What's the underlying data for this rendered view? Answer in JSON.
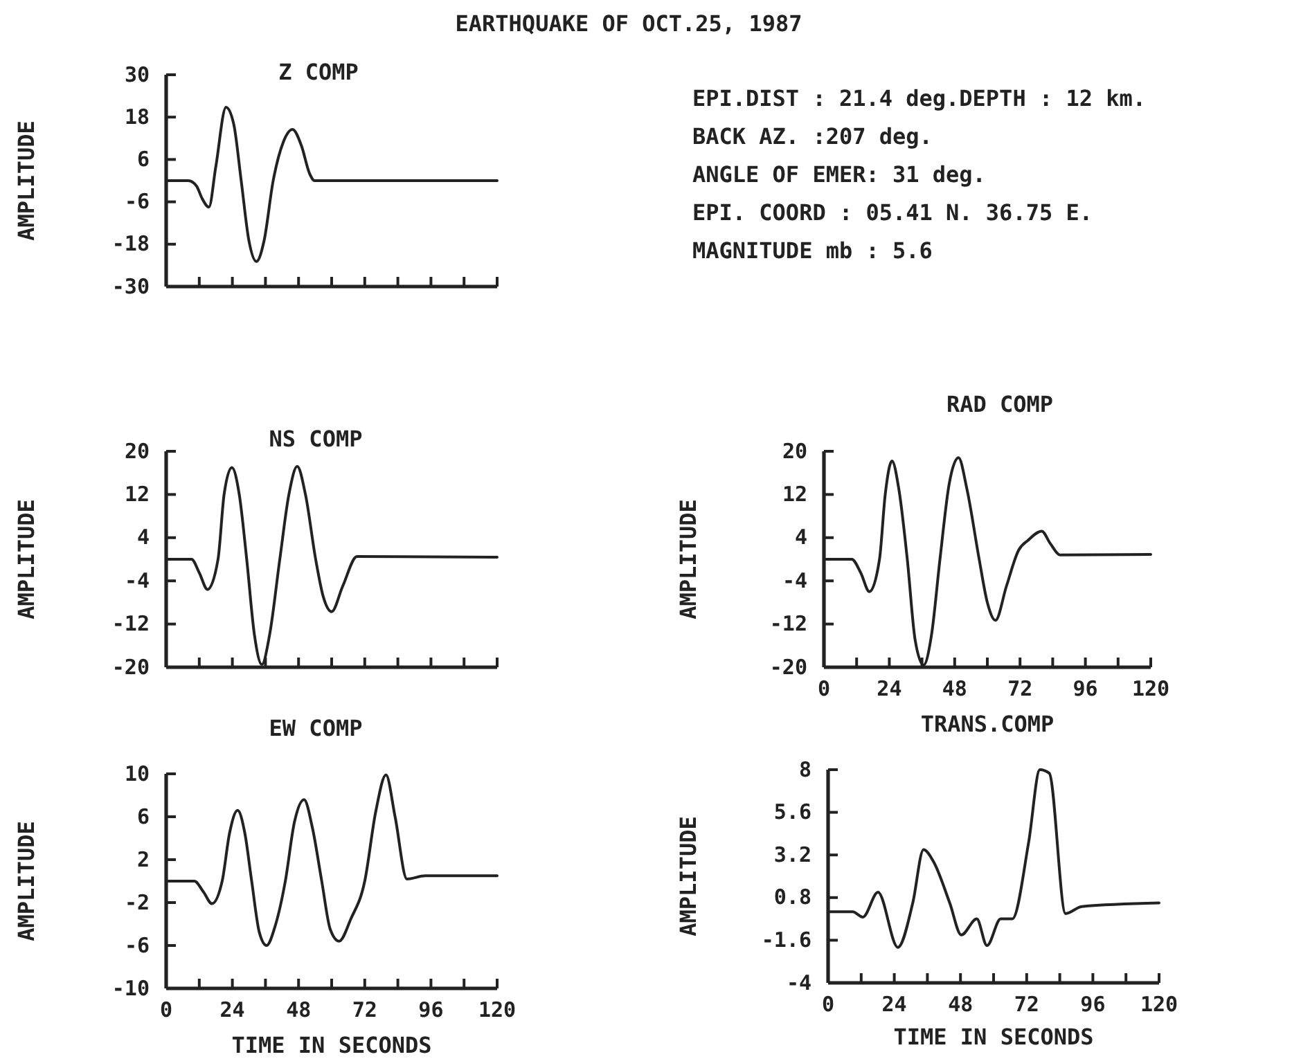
{
  "chart_data": [
    {
      "type": "line",
      "title": "Z COMP",
      "ylabel": "AMPLITUDE",
      "xlim": [
        0,
        120
      ],
      "ylim": [
        -30,
        30
      ],
      "yticks": [
        -30,
        -18,
        -6,
        6,
        18,
        30
      ],
      "tick_labels": "y",
      "line_style": "solid",
      "xticks": [
        {
          "value": 0,
          "label": null
        },
        {
          "value": 12,
          "label": null
        },
        {
          "value": 24,
          "label": null
        },
        {
          "value": 36,
          "label": null
        },
        {
          "value": 48,
          "label": null
        },
        {
          "value": 60,
          "label": null
        },
        {
          "value": 72,
          "label": null
        },
        {
          "value": 84,
          "label": null
        },
        {
          "value": 96,
          "label": null
        },
        {
          "value": 108,
          "label": null
        },
        {
          "value": 120,
          "label": null
        }
      ],
      "x": [
        0,
        8,
        11,
        13,
        15.5,
        18,
        21.7,
        24.5,
        27.2,
        30,
        32.7,
        35.5,
        38.8,
        42.5,
        45.8,
        49,
        52,
        53.8,
        60,
        120
      ],
      "series": [
        {
          "color": "#222222",
          "values": [
            0,
            0,
            -1.5,
            -5,
            -7.5,
            4,
            20.8,
            16,
            0,
            -17,
            -22.9,
            -17,
            0,
            11,
            14.5,
            10,
            2,
            0,
            0,
            0
          ]
        }
      ]
    },
    {
      "type": "other",
      "title": "EARTHQUAKE OF OCT.25, 1987",
      "annotations": [
        "EPI.DIST : 21.4 deg.DEPTH : 12 km.",
        "BACK AZ. :207 deg.",
        "ANGLE OF EMER: 31 deg.",
        "EPI. COORD : 05.41 N. 36.75 E.",
        "MAGNITUDE mb : 5.6"
      ]
    },
    {
      "type": "line",
      "title": "NS COMP",
      "ylabel": "AMPLITUDE",
      "xlim": [
        0,
        120
      ],
      "ylim": [
        -20,
        20
      ],
      "yticks": [
        -20,
        -12,
        -4,
        4,
        12,
        20
      ],
      "tick_labels": "y",
      "line_style": "solid",
      "xticks": [
        {
          "value": 0,
          "label": null
        },
        {
          "value": 12,
          "label": null
        },
        {
          "value": 24,
          "label": null
        },
        {
          "value": 36,
          "label": null
        },
        {
          "value": 48,
          "label": null
        },
        {
          "value": 60,
          "label": null
        },
        {
          "value": 72,
          "label": null
        },
        {
          "value": 84,
          "label": null
        },
        {
          "value": 96,
          "label": null
        },
        {
          "value": 108,
          "label": null
        },
        {
          "value": 120,
          "label": null
        }
      ],
      "x": [
        0,
        9.2,
        12,
        15,
        18.8,
        21,
        23.8,
        26.5,
        29.2,
        32,
        34.7,
        37.5,
        41.2,
        44.5,
        47.5,
        50.5,
        54.2,
        57,
        60,
        64,
        69.2,
        120
      ],
      "series": [
        {
          "color": "#222222",
          "values": [
            0,
            0,
            -2.5,
            -5.6,
            0,
            12,
            17,
            12,
            0,
            -14,
            -19.5,
            -14,
            0,
            12,
            17.2,
            12,
            0,
            -7,
            -9.7,
            -5,
            0.5,
            0.4
          ]
        }
      ]
    },
    {
      "type": "line",
      "title": "RAD COMP",
      "ylabel": "AMPLITUDE",
      "xlim": [
        0,
        120
      ],
      "ylim": [
        -20,
        20
      ],
      "yticks": [
        -20,
        -12,
        -4,
        4,
        12,
        20
      ],
      "line_style": "solid",
      "xticks": [
        0,
        {
          "value": 12,
          "label": null
        },
        24,
        {
          "value": 36,
          "label": null
        },
        48,
        {
          "value": 60,
          "label": null
        },
        72,
        {
          "value": 84,
          "label": null
        },
        96,
        {
          "value": 108,
          "label": null
        },
        120
      ],
      "x": [
        0,
        10.2,
        13.5,
        16.7,
        20.4,
        22.5,
        25,
        27.5,
        30.6,
        33.5,
        36.6,
        39.5,
        42.6,
        46,
        49.4,
        52.5,
        57,
        60,
        63,
        67,
        71.5,
        74.9,
        80,
        83,
        86.8,
        120
      ],
      "series": [
        {
          "color": "#222222",
          "values": [
            0,
            0,
            -2.5,
            -6,
            0,
            12,
            18.2,
            13,
            0,
            -15,
            -19.6,
            -14,
            0,
            14,
            18.8,
            13,
            0,
            -8,
            -11.3,
            -5,
            1.7,
            3.5,
            5.2,
            3,
            0.8,
            0.9
          ]
        }
      ]
    },
    {
      "type": "line",
      "title": "EW COMP",
      "ylabel": "AMPLITUDE",
      "xlabel": "TIME IN SECONDS",
      "xlim": [
        0,
        120
      ],
      "ylim": [
        -10,
        10
      ],
      "yticks": [
        -10,
        -6,
        -2,
        2,
        6,
        10
      ],
      "line_style": "solid",
      "xticks": [
        0,
        {
          "value": 12,
          "label": null
        },
        24,
        {
          "value": 36,
          "label": null
        },
        48,
        {
          "value": 60,
          "label": null
        },
        72,
        {
          "value": 84,
          "label": null
        },
        96,
        {
          "value": 108,
          "label": null
        },
        120
      ],
      "x": [
        0,
        10.2,
        13.5,
        16.6,
        20.3,
        23,
        25.9,
        28.5,
        31,
        33.8,
        36.4,
        39.5,
        43.2,
        46.5,
        50,
        53,
        56.4,
        59.5,
        62.7,
        67,
        72,
        76,
        79.7,
        83,
        87.3,
        94,
        120
      ],
      "series": [
        {
          "color": "#222222",
          "values": [
            0,
            0,
            -1,
            -2.1,
            0,
            4.5,
            6.6,
            4.5,
            0,
            -4.8,
            -6,
            -4.2,
            0,
            5.5,
            7.6,
            5,
            0,
            -4.5,
            -5.6,
            -3.5,
            0,
            6.5,
            9.9,
            6,
            0.2,
            0.5,
            0.5
          ]
        }
      ]
    },
    {
      "type": "line",
      "title": "TRANS.COMP",
      "ylabel": "AMPLITUDE",
      "xlabel": "TIME IN SECONDS",
      "xlim": [
        0,
        120
      ],
      "ylim": [
        -4,
        8
      ],
      "yticks": [
        -4,
        -1.6,
        0.8,
        3.2,
        5.6,
        8
      ],
      "line_style": "solid",
      "xticks": [
        0,
        {
          "value": 12,
          "label": null
        },
        24,
        {
          "value": 36,
          "label": null
        },
        48,
        {
          "value": 60,
          "label": null
        },
        72,
        {
          "value": 84,
          "label": null
        },
        96,
        {
          "value": 108,
          "label": null
        },
        120
      ],
      "x": [
        0,
        8.9,
        12.6,
        18.1,
        25.3,
        30.7,
        34.6,
        38.3,
        44.1,
        48.3,
        53.9,
        57.6,
        62.6,
        66.8,
        72.7,
        76.8,
        80.2,
        86.1,
        92,
        120
      ],
      "series": [
        {
          "color": "#222222",
          "values": [
            0,
            0,
            -0.3,
            1.1,
            -2,
            0.5,
            3.5,
            2.8,
            0.5,
            -1.3,
            -0.4,
            -1.9,
            -0.4,
            -0.4,
            3.9,
            8,
            7.8,
            -0.1,
            0.3,
            0.5
          ]
        }
      ]
    }
  ]
}
